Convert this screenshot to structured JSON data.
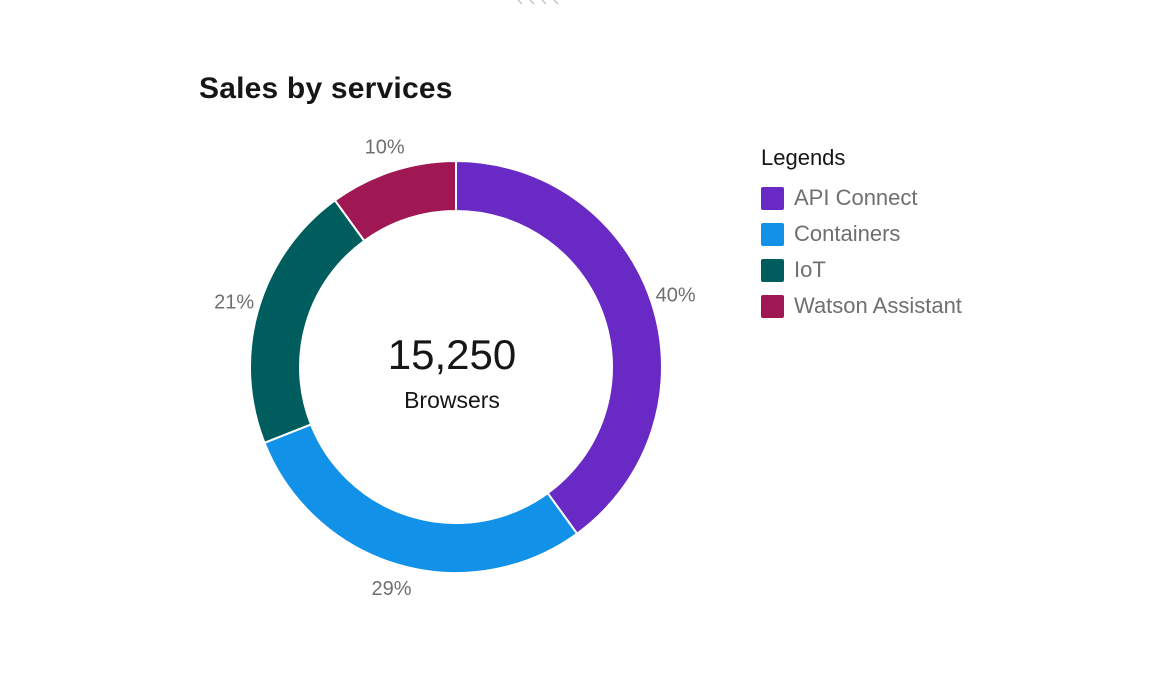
{
  "chart_data": {
    "type": "donut",
    "title": "Sales by services",
    "center": {
      "value": "15,250",
      "label": "Browsers"
    },
    "legend_title": "Legends",
    "slices": [
      {
        "name": "API Connect",
        "value": 40,
        "label": "40%",
        "color": "#6929c4"
      },
      {
        "name": "Containers",
        "value": 29,
        "label": "29%",
        "color": "#1192e8"
      },
      {
        "name": "IoT",
        "value": 21,
        "label": "21%",
        "color": "#005d5d"
      },
      {
        "name": "Watson Assistant",
        "value": 10,
        "label": "10%",
        "color": "#9f1853"
      }
    ]
  }
}
